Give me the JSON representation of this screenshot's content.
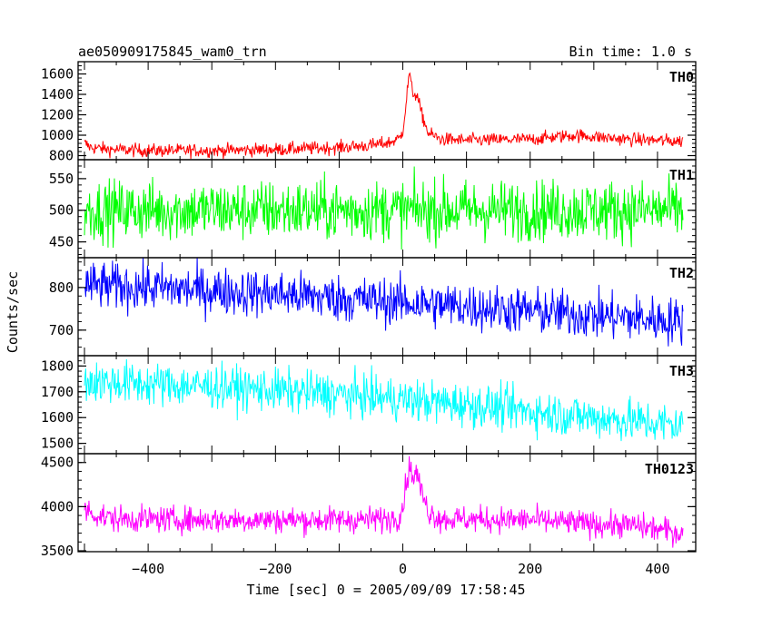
{
  "header": {
    "left_title": "ae050909175845_wam0_trn",
    "right_title": "Bin time: 1.0 s"
  },
  "chart_data": {
    "type": "line",
    "ylabel": "Counts/sec",
    "xlabel": "Time [sec] 0 = 2005/09/09 17:58:45",
    "xlim": [
      -510,
      460
    ],
    "x_ticks": [
      -400,
      -200,
      0,
      200,
      400
    ],
    "x_data_range": [
      -500,
      440
    ],
    "bin_time": 1.0,
    "panels": [
      {
        "name": "TH0",
        "color": "#ff0000",
        "ylim": [
          760,
          1720
        ],
        "y_ticks": [
          800,
          1000,
          1200,
          1400,
          1600
        ],
        "profile": [
          [
            -500,
            920
          ],
          [
            -490,
            880
          ],
          [
            -460,
            860
          ],
          [
            -400,
            850
          ],
          [
            -300,
            850
          ],
          [
            -200,
            860
          ],
          [
            -100,
            880
          ],
          [
            -50,
            900
          ],
          [
            -20,
            930
          ],
          [
            -5,
            970
          ],
          [
            0,
            1050
          ],
          [
            5,
            1300
          ],
          [
            10,
            1620
          ],
          [
            15,
            1420
          ],
          [
            22,
            1390
          ],
          [
            30,
            1200
          ],
          [
            40,
            1020
          ],
          [
            60,
            960
          ],
          [
            100,
            950
          ],
          [
            200,
            960
          ],
          [
            270,
            1000
          ],
          [
            350,
            960
          ],
          [
            440,
            940
          ]
        ],
        "noise": 33
      },
      {
        "name": "TH1",
        "color": "#00ff00",
        "ylim": [
          425,
          580
        ],
        "y_ticks": [
          450,
          500,
          550
        ],
        "profile": [
          [
            -500,
            500
          ],
          [
            440,
            500
          ]
        ],
        "noise": 24
      },
      {
        "name": "TH2",
        "color": "#0000ff",
        "ylim": [
          640,
          870
        ],
        "y_ticks": [
          700,
          800
        ],
        "profile": [
          [
            -500,
            805
          ],
          [
            -400,
            800
          ],
          [
            -200,
            785
          ],
          [
            0,
            765
          ],
          [
            200,
            745
          ],
          [
            440,
            720
          ]
        ],
        "noise": 28
      },
      {
        "name": "TH3",
        "color": "#00ffff",
        "ylim": [
          1460,
          1840
        ],
        "y_ticks": [
          1500,
          1600,
          1700,
          1800
        ],
        "profile": [
          [
            -500,
            1740
          ],
          [
            -300,
            1720
          ],
          [
            -100,
            1690
          ],
          [
            100,
            1650
          ],
          [
            300,
            1600
          ],
          [
            440,
            1570
          ]
        ],
        "noise": 42
      },
      {
        "name": "TH0123",
        "color": "#ff00ff",
        "ylim": [
          3490,
          4600
        ],
        "y_ticks": [
          3500,
          4000,
          4500
        ],
        "profile": [
          [
            -500,
            3980
          ],
          [
            -480,
            3900
          ],
          [
            -450,
            3860
          ],
          [
            -300,
            3850
          ],
          [
            -100,
            3850
          ],
          [
            -20,
            3860
          ],
          [
            -5,
            3900
          ],
          [
            0,
            4000
          ],
          [
            5,
            4250
          ],
          [
            10,
            4450
          ],
          [
            15,
            4350
          ],
          [
            22,
            4380
          ],
          [
            30,
            4150
          ],
          [
            40,
            3950
          ],
          [
            60,
            3860
          ],
          [
            200,
            3850
          ],
          [
            300,
            3800
          ],
          [
            360,
            3790
          ],
          [
            440,
            3700
          ]
        ],
        "noise": 75
      }
    ]
  }
}
